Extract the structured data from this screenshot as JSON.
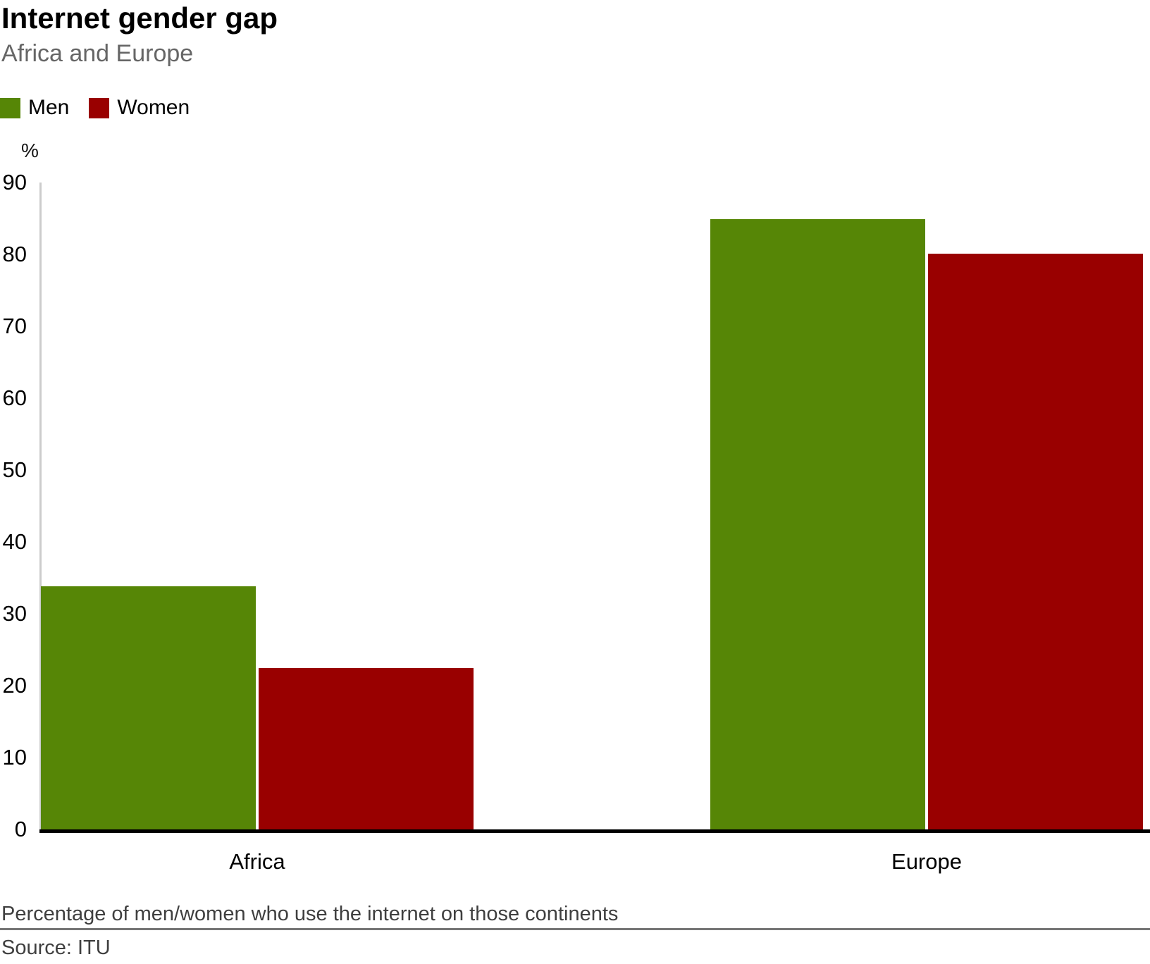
{
  "chart_data": {
    "type": "bar",
    "title": "Internet gender gap",
    "subtitle": "Africa and Europe",
    "categories": [
      "Africa",
      "Europe"
    ],
    "series": [
      {
        "name": "Men",
        "color": "#568606",
        "values": [
          33.8,
          84.9
        ]
      },
      {
        "name": "Women",
        "color": "#990000",
        "values": [
          22.5,
          80.1
        ]
      }
    ],
    "xlabel": "",
    "ylabel": "%",
    "ylim": [
      0,
      90
    ],
    "yticks": [
      0,
      10,
      20,
      30,
      40,
      50,
      60,
      70,
      80,
      90
    ],
    "grid": "off",
    "legend_position": "top-left",
    "footnote": "Percentage of men/women who use the internet on those continents",
    "source": "Source: ITU"
  }
}
